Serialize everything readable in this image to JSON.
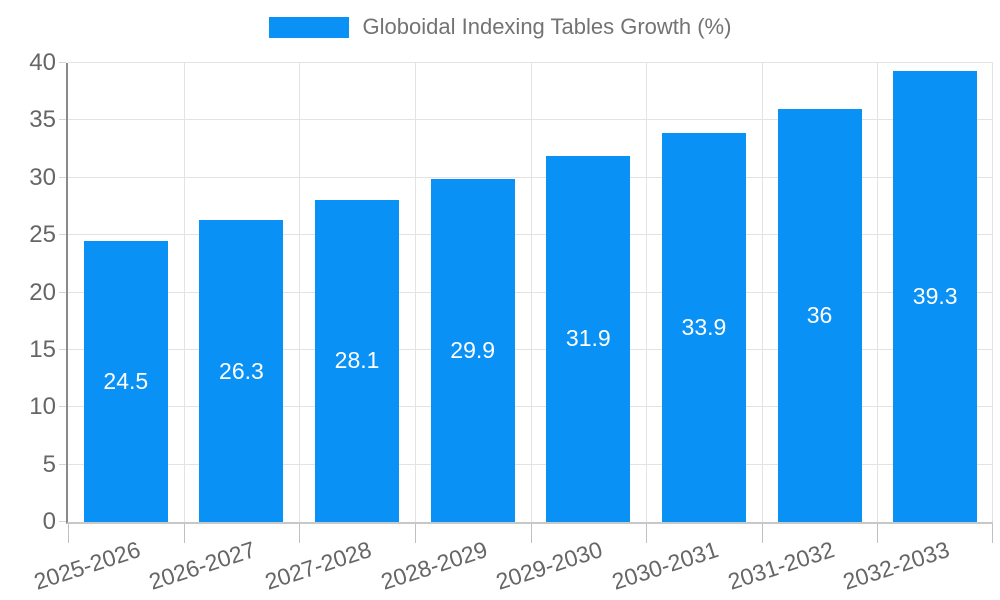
{
  "legend": {
    "label": "Globoidal Indexing Tables Growth (%)"
  },
  "chart_data": {
    "type": "bar",
    "title": "Globoidal Indexing Tables Growth (%)",
    "categories": [
      "2025-2026",
      "2026-2027",
      "2027-2028",
      "2028-2029",
      "2029-2030",
      "2030-2031",
      "2031-2032",
      "2032-2033"
    ],
    "values": [
      24.5,
      26.3,
      28.1,
      29.9,
      31.9,
      33.9,
      36,
      39.3
    ],
    "xlabel": "",
    "ylabel": "",
    "ylim": [
      0,
      40
    ],
    "yticks": [
      0,
      5,
      10,
      15,
      20,
      25,
      30,
      35,
      40
    ],
    "grid": true,
    "legend_position": "top",
    "value_labels": "inside-center",
    "bar_color": "#0991f5",
    "value_label_color": "#ffffff",
    "axis_text_color": "#666666",
    "legend_text_color": "#737373",
    "gridline_color": "#e3e3e3"
  }
}
